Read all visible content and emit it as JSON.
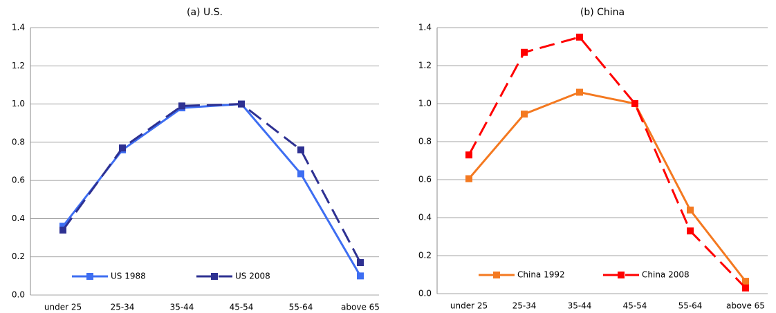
{
  "chart_data": [
    {
      "type": "line",
      "title": "(a) U.S.",
      "categories": [
        "under 25",
        "25-34",
        "35-44",
        "45-54",
        "55-64",
        "above 65"
      ],
      "series": [
        {
          "name": "US 1988",
          "color": "#3e6ef2",
          "style": "solid",
          "values": [
            0.36,
            0.76,
            0.98,
            1.0,
            0.635,
            0.1
          ]
        },
        {
          "name": "US 2008",
          "color": "#2e3192",
          "style": "dashed",
          "values": [
            0.34,
            0.77,
            0.99,
            1.0,
            0.76,
            0.17
          ]
        }
      ],
      "ylim": [
        0,
        1.4
      ],
      "yticks": [
        {
          "value": 0,
          "label": "0.0"
        },
        0.2,
        0.4,
        0.6,
        0.8,
        {
          "value": 1,
          "label": "1.0"
        },
        1.2,
        1.4
      ],
      "grid": true,
      "legend": "bottom"
    },
    {
      "type": "line",
      "title": "(b) China",
      "categories": [
        "under 25",
        "25-34",
        "35-44",
        "45-54",
        "55-64",
        "above 65"
      ],
      "series": [
        {
          "name": "China 1992",
          "color": "#f47920",
          "style": "solid",
          "values": [
            0.605,
            0.945,
            1.06,
            1.0,
            0.44,
            0.065
          ]
        },
        {
          "name": "China 2008",
          "color": "#ff0000",
          "style": "dashed",
          "values": [
            0.73,
            1.27,
            1.35,
            1.0,
            0.33,
            0.03
          ]
        }
      ],
      "ylim": [
        0,
        1.4
      ],
      "yticks": [
        {
          "value": 0,
          "label": "0.0"
        },
        0.2,
        0.4,
        0.6,
        0.8,
        {
          "value": 1,
          "label": "1.0"
        },
        1.2,
        1.4
      ],
      "grid": true,
      "legend": "bottom"
    }
  ]
}
